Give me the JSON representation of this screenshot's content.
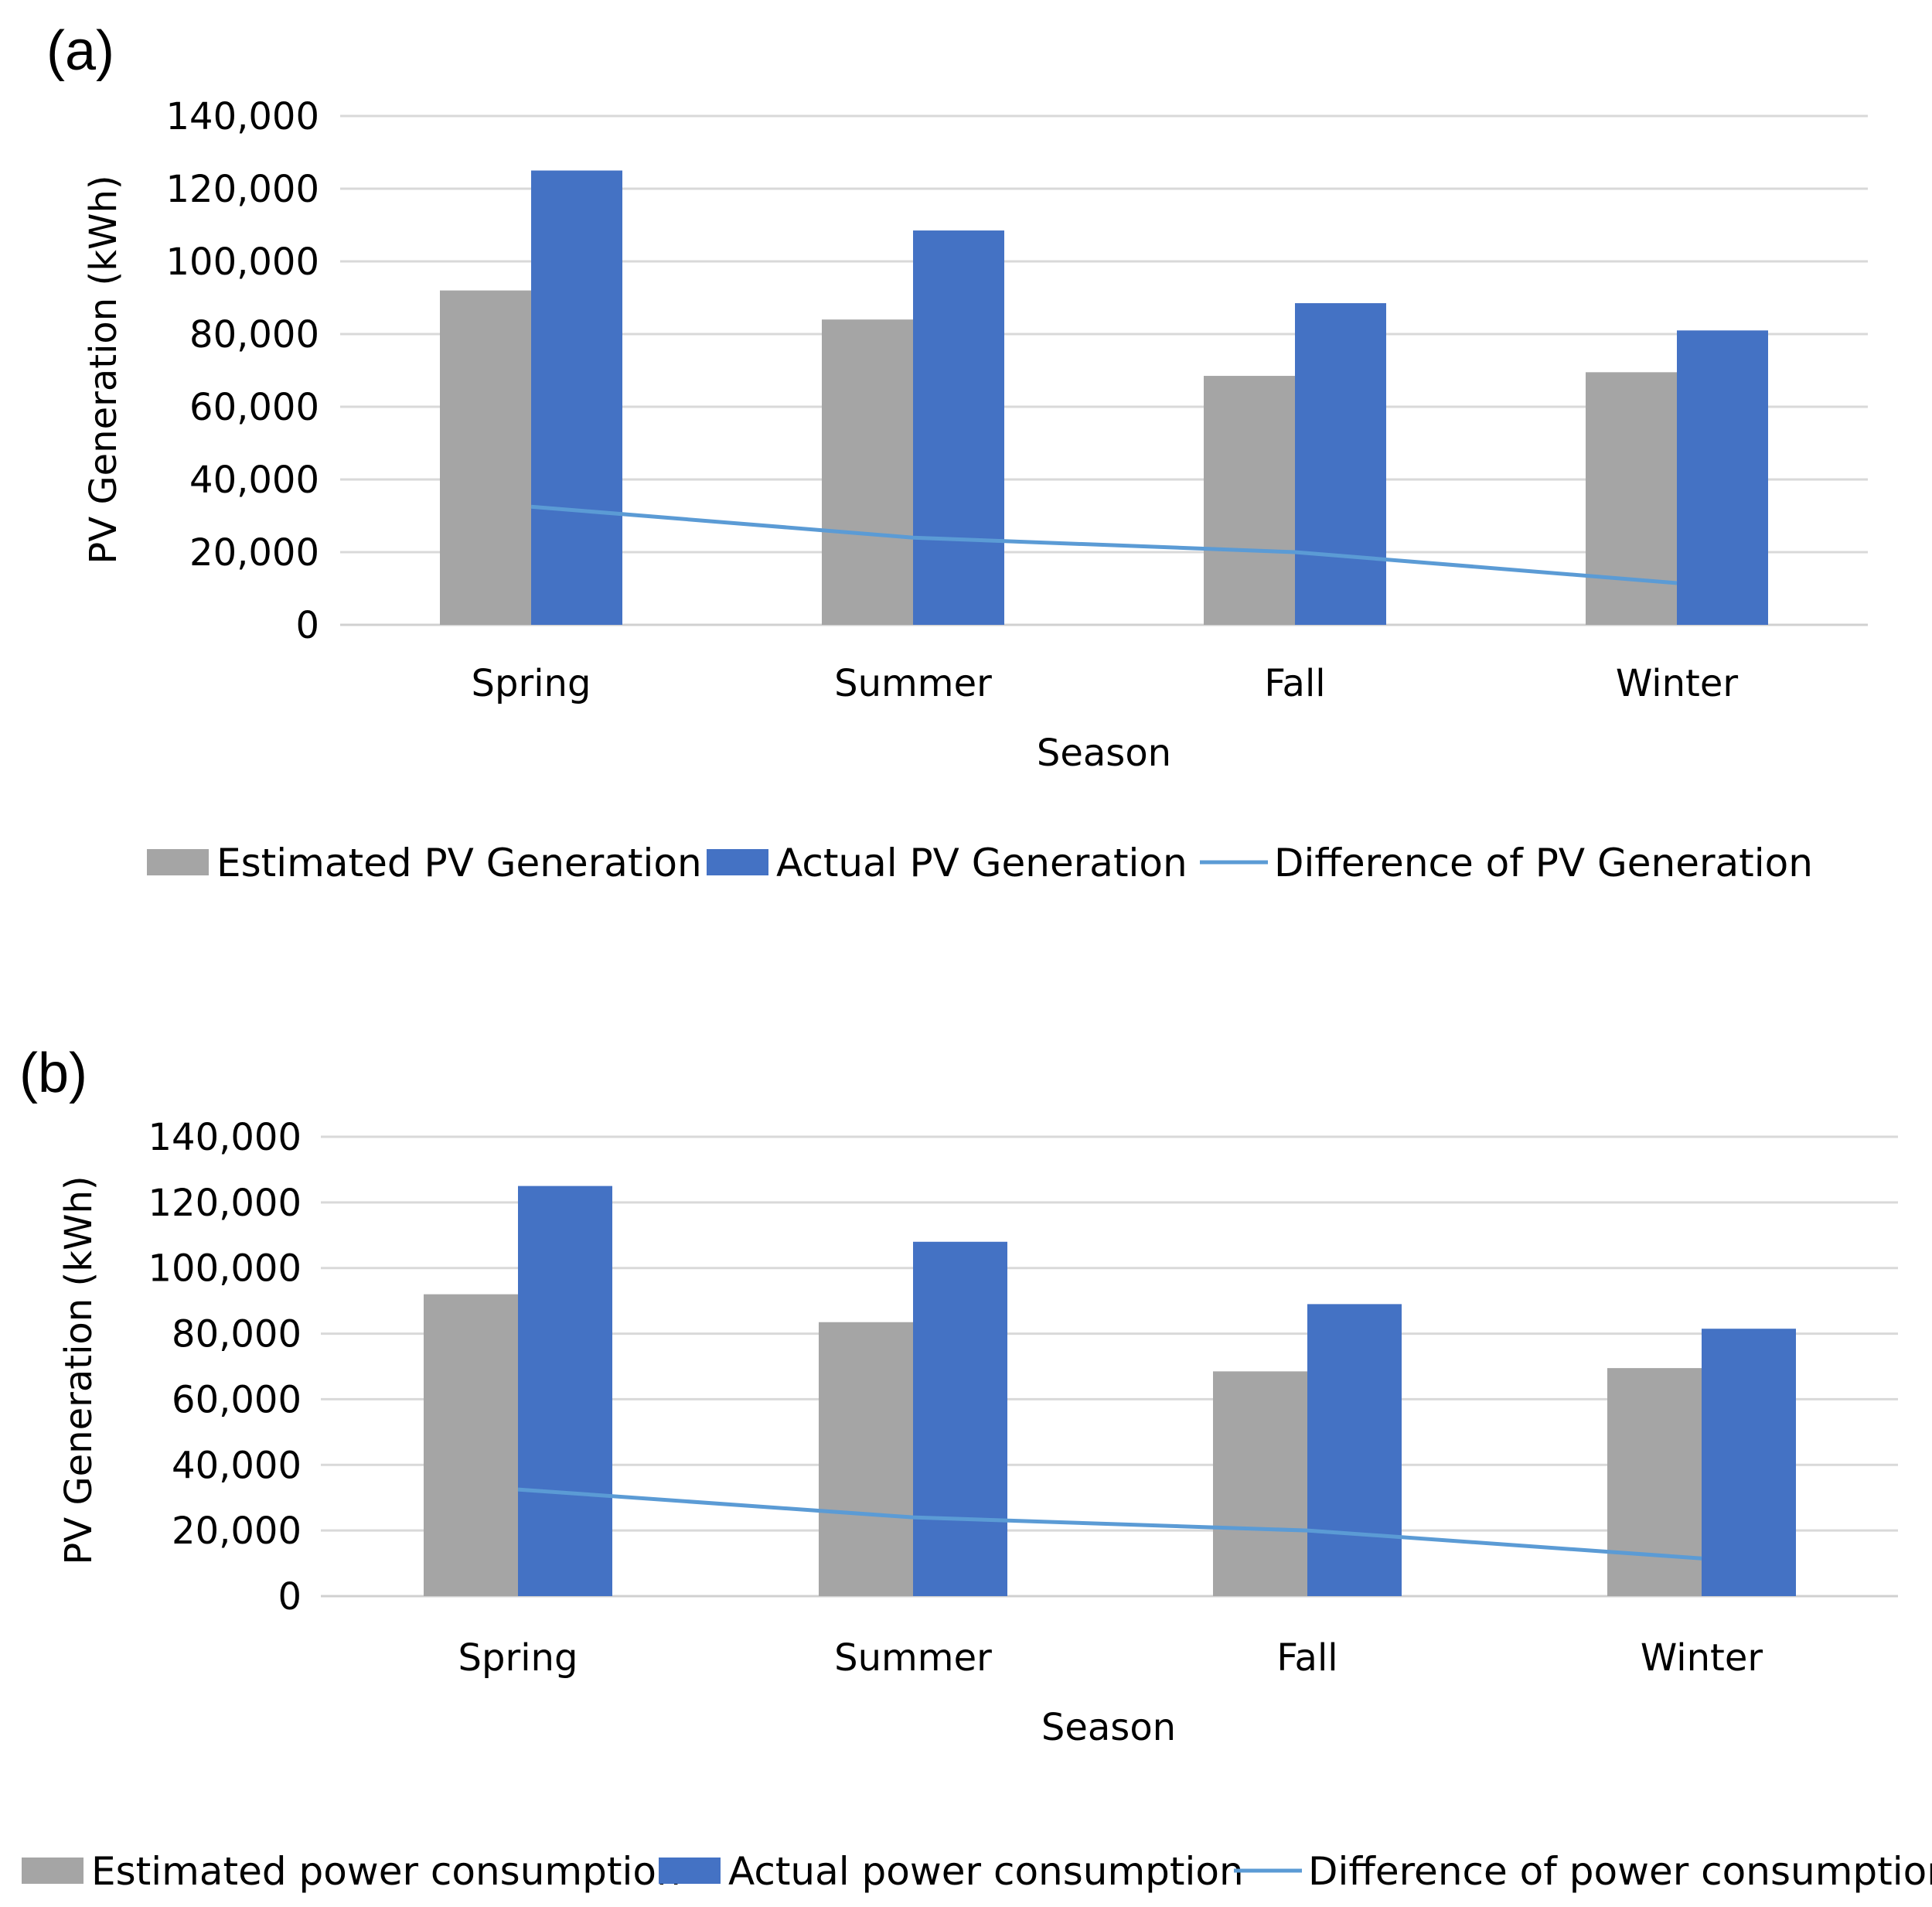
{
  "chart_data": [
    {
      "type": "bar",
      "panel_label": "(a)",
      "categories": [
        "Spring",
        "Summer",
        "Fall",
        "Winter"
      ],
      "series": [
        {
          "name": "Estimated PV Generation",
          "kind": "bar",
          "color": "#a5a5a5",
          "values": [
            92000,
            84000,
            68500,
            69500
          ]
        },
        {
          "name": "Actual PV Generation",
          "kind": "bar",
          "color": "#4472c4",
          "values": [
            125000,
            108500,
            88500,
            81000
          ]
        },
        {
          "name": "Difference of PV Generation",
          "kind": "line",
          "color": "#5b9bd5",
          "values": [
            32500,
            24000,
            20000,
            11500
          ]
        }
      ],
      "xlabel": "Season",
      "ylabel": "PV Generation (kWh)",
      "ylim": [
        0,
        140000
      ],
      "yticks": [
        0,
        20000,
        40000,
        60000,
        80000,
        100000,
        120000,
        140000
      ],
      "ytick_labels": [
        "0",
        "20,000",
        "40,000",
        "60,000",
        "80,000",
        "100,000",
        "120,000",
        "140,000"
      ],
      "grid": true,
      "legend": "bottom"
    },
    {
      "type": "bar",
      "panel_label": "(b)",
      "categories": [
        "Spring",
        "Summer",
        "Fall",
        "Winter"
      ],
      "series": [
        {
          "name": "Estimated power consumption",
          "kind": "bar",
          "color": "#a5a5a5",
          "values": [
            92000,
            83500,
            68500,
            69500
          ]
        },
        {
          "name": "Actual power consumption",
          "kind": "bar",
          "color": "#4472c4",
          "values": [
            125000,
            108000,
            89000,
            81500
          ]
        },
        {
          "name": "Difference of power consumption",
          "kind": "line",
          "color": "#5b9bd5",
          "values": [
            32500,
            24000,
            20000,
            11500
          ]
        }
      ],
      "xlabel": "Season",
      "ylabel": "PV Generation (kWh)",
      "ylim": [
        0,
        140000
      ],
      "yticks": [
        0,
        20000,
        40000,
        60000,
        80000,
        100000,
        120000,
        140000
      ],
      "ytick_labels": [
        "0",
        "20,000",
        "40,000",
        "60,000",
        "80,000",
        "100,000",
        "120,000",
        "140,000"
      ],
      "grid": true,
      "legend": "bottom"
    }
  ]
}
